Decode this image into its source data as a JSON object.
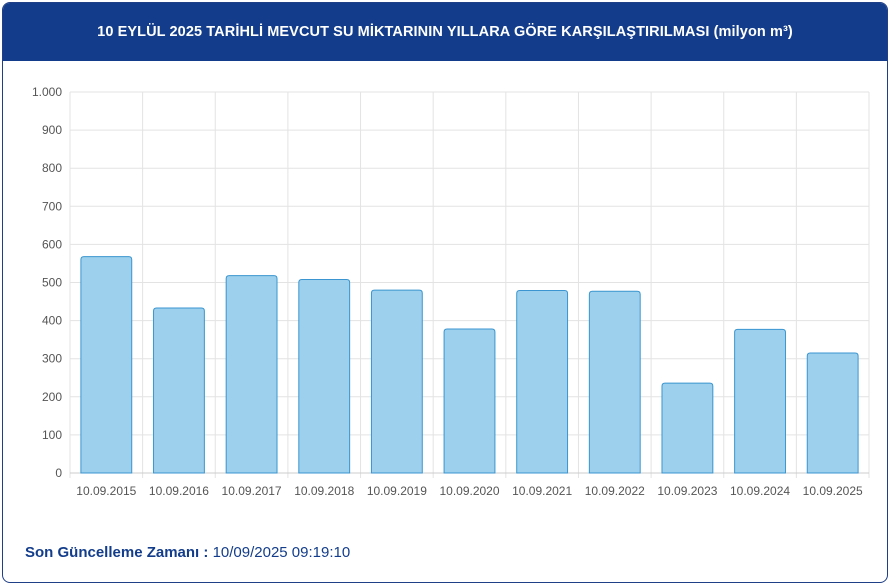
{
  "header": {
    "title": "10 EYLÜL 2025 TARİHLİ MEVCUT SU MİKTARININ YILLARA GÖRE KARŞILAŞTIRILMASI (milyon m³)"
  },
  "footer": {
    "label": "Son Güncelleme Zamanı :",
    "value": "10/09/2025 09:19:10"
  },
  "colors": {
    "header_bg": "#133d8b",
    "bar_fill": "#9dd0ec",
    "bar_stroke": "#3a95d0",
    "grid": "#e3e3e3",
    "axis_text": "#555555"
  },
  "chart_data": {
    "type": "bar",
    "categories": [
      "10.09.2015",
      "10.09.2016",
      "10.09.2017",
      "10.09.2018",
      "10.09.2019",
      "10.09.2020",
      "10.09.2021",
      "10.09.2022",
      "10.09.2023",
      "10.09.2024",
      "10.09.2025"
    ],
    "values": [
      568,
      433,
      518,
      508,
      480,
      378,
      479,
      477,
      236,
      377,
      315
    ],
    "title": "",
    "xlabel": "",
    "ylabel": "",
    "ylim": [
      0,
      1000
    ],
    "yticks": [
      0,
      100,
      200,
      300,
      400,
      500,
      600,
      700,
      800,
      900,
      1000
    ],
    "ytick_labels": [
      "0",
      "100",
      "200",
      "300",
      "400",
      "500",
      "600",
      "700",
      "800",
      "900",
      "1.000"
    ],
    "grid": true,
    "legend": "none"
  }
}
